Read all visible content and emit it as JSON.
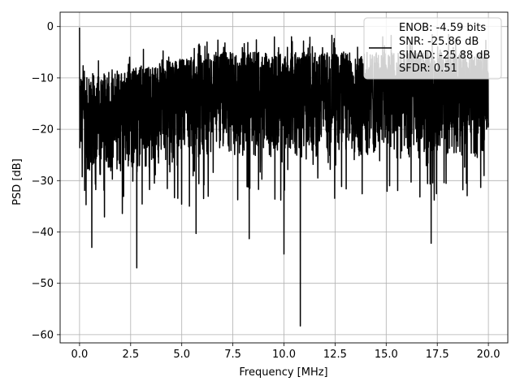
{
  "chart_data": {
    "type": "line",
    "title": "",
    "xlabel": "Frequency [MHz]",
    "ylabel": "PSD [dB]",
    "xlim": [
      -0.95,
      20.95
    ],
    "ylim": [
      -61.6,
      2.8
    ],
    "xticks": [
      0.0,
      2.5,
      5.0,
      7.5,
      10.0,
      12.5,
      15.0,
      17.5,
      20.0
    ],
    "xtick_labels": [
      "0.0",
      "2.5",
      "5.0",
      "7.5",
      "10.0",
      "12.5",
      "15.0",
      "17.5",
      "20.0"
    ],
    "yticks": [
      0,
      -10,
      -20,
      -30,
      -40,
      -50,
      -60
    ],
    "ytick_labels": [
      "0",
      "−10",
      "−20",
      "−30",
      "−40",
      "−50",
      "−60"
    ],
    "grid": true,
    "legend": {
      "placement": "top-right",
      "lines": [
        "ENOB: -4.59 bits",
        "SNR: -25.86 dB",
        "SINAD: -25.88 dB",
        "SFDR: 0.51"
      ]
    },
    "series": [
      {
        "color": "#000000",
        "x_range": [
          0,
          20
        ],
        "noise_floor_range_db": [
          -30,
          -5
        ],
        "peaks": [
          {
            "x": 0.0,
            "y": -0.2
          },
          {
            "x": 0.6,
            "y": -43.0
          },
          {
            "x": 2.8,
            "y": -47.0
          },
          {
            "x": 5.7,
            "y": -40.3
          },
          {
            "x": 8.3,
            "y": -41.3
          },
          {
            "x": 10.0,
            "y": -44.3
          },
          {
            "x": 10.8,
            "y": -58.3
          },
          {
            "x": 17.2,
            "y": -42.2
          }
        ]
      }
    ]
  }
}
